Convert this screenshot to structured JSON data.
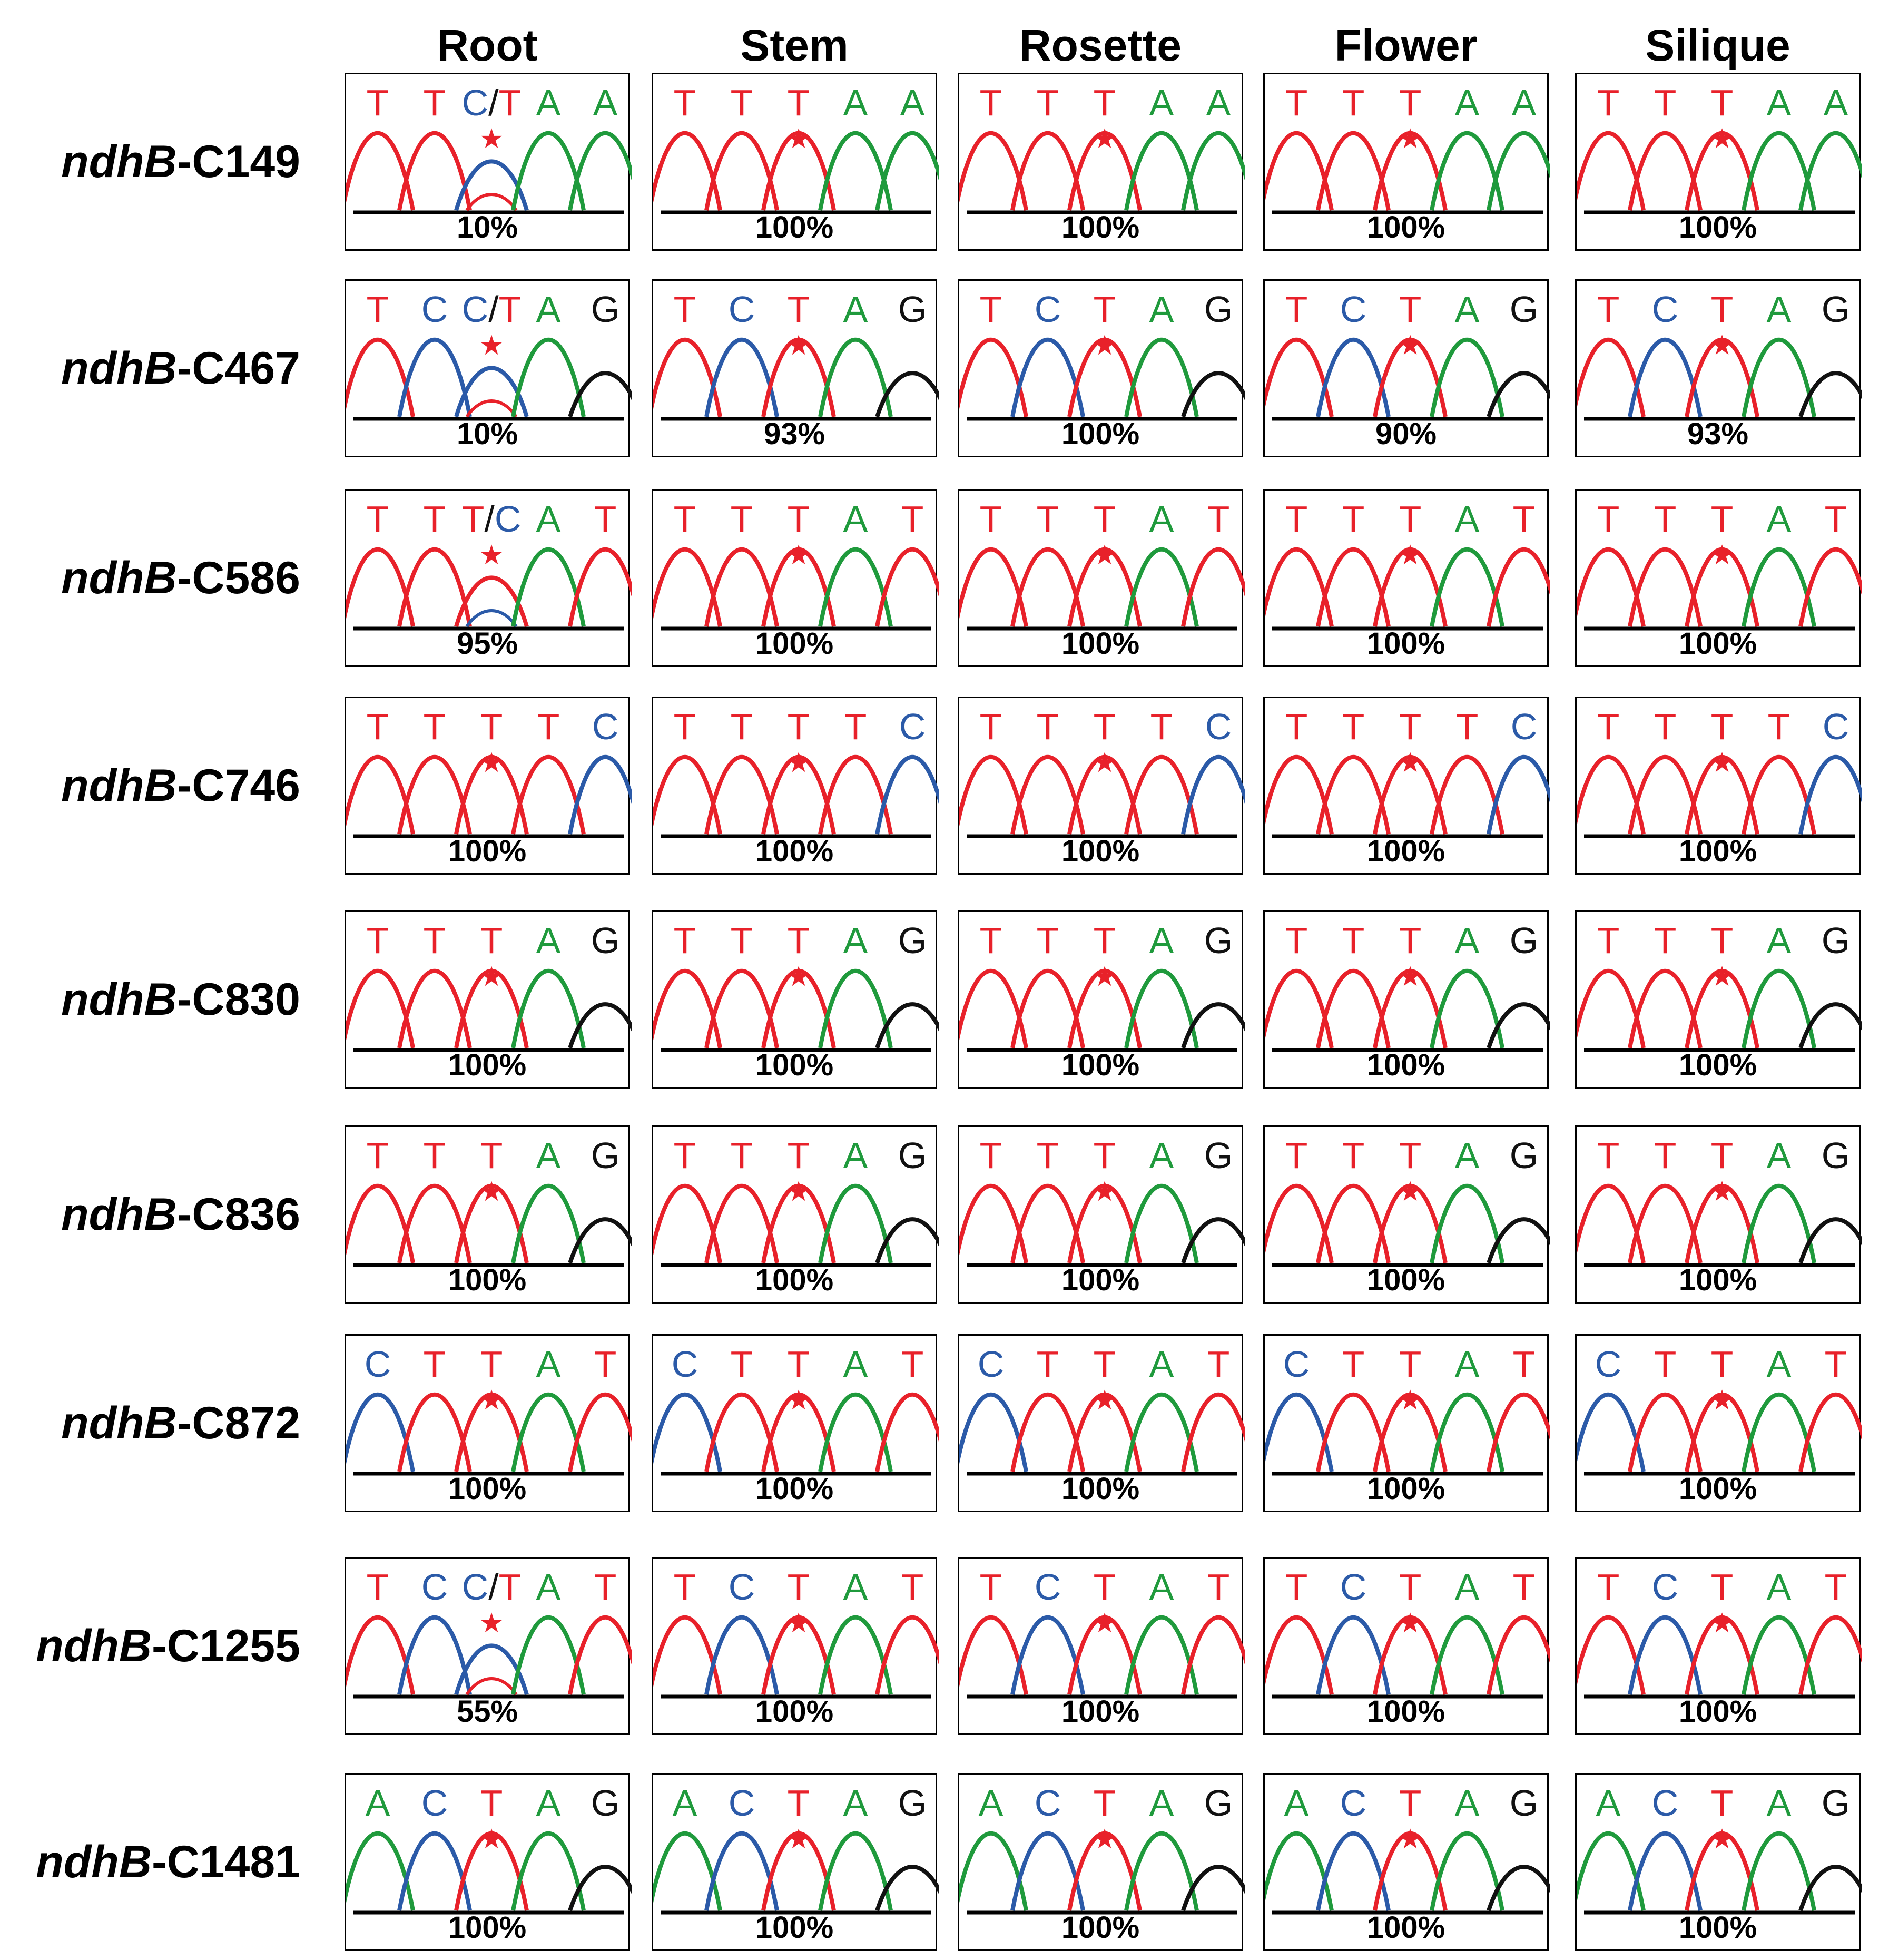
{
  "tissues": [
    "Root",
    "Stem",
    "Rosette",
    "Flower",
    "Silique"
  ],
  "colors": {
    "T": "#e8212a",
    "C": "#2b5aa8",
    "A": "#1f9a3c",
    "G": "#111111",
    "slash": "#111111",
    "star": "#e8212a"
  },
  "rows": [
    {
      "gene": "ndhB",
      "site": "-C149",
      "cells": [
        {
          "bases": [
            "T",
            "T",
            "C/T",
            "A",
            "A"
          ],
          "percent": "10%"
        },
        {
          "bases": [
            "T",
            "T",
            "T",
            "A",
            "A"
          ],
          "percent": "100%"
        },
        {
          "bases": [
            "T",
            "T",
            "T",
            "A",
            "A"
          ],
          "percent": "100%"
        },
        {
          "bases": [
            "T",
            "T",
            "T",
            "A",
            "A"
          ],
          "percent": "100%"
        },
        {
          "bases": [
            "T",
            "T",
            "T",
            "A",
            "A"
          ],
          "percent": "100%"
        }
      ]
    },
    {
      "gene": "ndhB",
      "site": "-C467",
      "cells": [
        {
          "bases": [
            "T",
            "C",
            "C/T",
            "A",
            "G"
          ],
          "percent": "10%"
        },
        {
          "bases": [
            "T",
            "C",
            "T",
            "A",
            "G"
          ],
          "percent": "93%"
        },
        {
          "bases": [
            "T",
            "C",
            "T",
            "A",
            "G"
          ],
          "percent": "100%"
        },
        {
          "bases": [
            "T",
            "C",
            "T",
            "A",
            "G"
          ],
          "percent": "90%"
        },
        {
          "bases": [
            "T",
            "C",
            "T",
            "A",
            "G"
          ],
          "percent": "93%"
        }
      ]
    },
    {
      "gene": "ndhB",
      "site": "-C586",
      "cells": [
        {
          "bases": [
            "T",
            "T",
            "T/C",
            "A",
            "T"
          ],
          "percent": "95%"
        },
        {
          "bases": [
            "T",
            "T",
            "T",
            "A",
            "T"
          ],
          "percent": "100%"
        },
        {
          "bases": [
            "T",
            "T",
            "T",
            "A",
            "T"
          ],
          "percent": "100%"
        },
        {
          "bases": [
            "T",
            "T",
            "T",
            "A",
            "T"
          ],
          "percent": "100%"
        },
        {
          "bases": [
            "T",
            "T",
            "T",
            "A",
            "T"
          ],
          "percent": "100%"
        }
      ]
    },
    {
      "gene": "ndhB",
      "site": "-C746",
      "cells": [
        {
          "bases": [
            "T",
            "T",
            "T",
            "T",
            "C"
          ],
          "percent": "100%"
        },
        {
          "bases": [
            "T",
            "T",
            "T",
            "T",
            "C"
          ],
          "percent": "100%"
        },
        {
          "bases": [
            "T",
            "T",
            "T",
            "T",
            "C"
          ],
          "percent": "100%"
        },
        {
          "bases": [
            "T",
            "T",
            "T",
            "T",
            "C"
          ],
          "percent": "100%"
        },
        {
          "bases": [
            "T",
            "T",
            "T",
            "T",
            "C"
          ],
          "percent": "100%"
        }
      ]
    },
    {
      "gene": "ndhB",
      "site": "-C830",
      "cells": [
        {
          "bases": [
            "T",
            "T",
            "T",
            "A",
            "G"
          ],
          "percent": "100%"
        },
        {
          "bases": [
            "T",
            "T",
            "T",
            "A",
            "G"
          ],
          "percent": "100%"
        },
        {
          "bases": [
            "T",
            "T",
            "T",
            "A",
            "G"
          ],
          "percent": "100%"
        },
        {
          "bases": [
            "T",
            "T",
            "T",
            "A",
            "G"
          ],
          "percent": "100%"
        },
        {
          "bases": [
            "T",
            "T",
            "T",
            "A",
            "G"
          ],
          "percent": "100%"
        }
      ]
    },
    {
      "gene": "ndhB",
      "site": "-C836",
      "cells": [
        {
          "bases": [
            "T",
            "T",
            "T",
            "A",
            "G"
          ],
          "percent": "100%"
        },
        {
          "bases": [
            "T",
            "T",
            "T",
            "A",
            "G"
          ],
          "percent": "100%"
        },
        {
          "bases": [
            "T",
            "T",
            "T",
            "A",
            "G"
          ],
          "percent": "100%"
        },
        {
          "bases": [
            "T",
            "T",
            "T",
            "A",
            "G"
          ],
          "percent": "100%"
        },
        {
          "bases": [
            "T",
            "T",
            "T",
            "A",
            "G"
          ],
          "percent": "100%"
        }
      ]
    },
    {
      "gene": "ndhB",
      "site": "-C872",
      "cells": [
        {
          "bases": [
            "C",
            "T",
            "T",
            "A",
            "T"
          ],
          "percent": "100%"
        },
        {
          "bases": [
            "C",
            "T",
            "T",
            "A",
            "T"
          ],
          "percent": "100%"
        },
        {
          "bases": [
            "C",
            "T",
            "T",
            "A",
            "T"
          ],
          "percent": "100%"
        },
        {
          "bases": [
            "C",
            "T",
            "T",
            "A",
            "T"
          ],
          "percent": "100%"
        },
        {
          "bases": [
            "C",
            "T",
            "T",
            "A",
            "T"
          ],
          "percent": "100%"
        }
      ]
    },
    {
      "gene": "ndhB",
      "site": "-C1255",
      "cells": [
        {
          "bases": [
            "T",
            "C",
            "C/T",
            "A",
            "T"
          ],
          "percent": "55%"
        },
        {
          "bases": [
            "T",
            "C",
            "T",
            "A",
            "T"
          ],
          "percent": "100%"
        },
        {
          "bases": [
            "T",
            "C",
            "T",
            "A",
            "T"
          ],
          "percent": "100%"
        },
        {
          "bases": [
            "T",
            "C",
            "T",
            "A",
            "T"
          ],
          "percent": "100%"
        },
        {
          "bases": [
            "T",
            "C",
            "T",
            "A",
            "T"
          ],
          "percent": "100%"
        }
      ]
    },
    {
      "gene": "ndhB",
      "site": "-C1481",
      "cells": [
        {
          "bases": [
            "A",
            "C",
            "T",
            "A",
            "G"
          ],
          "percent": "100%"
        },
        {
          "bases": [
            "A",
            "C",
            "T",
            "A",
            "G"
          ],
          "percent": "100%"
        },
        {
          "bases": [
            "A",
            "C",
            "T",
            "A",
            "G"
          ],
          "percent": "100%"
        },
        {
          "bases": [
            "A",
            "C",
            "T",
            "A",
            "G"
          ],
          "percent": "100%"
        },
        {
          "bases": [
            "A",
            "C",
            "T",
            "A",
            "G"
          ],
          "percent": "100%"
        }
      ]
    }
  ]
}
